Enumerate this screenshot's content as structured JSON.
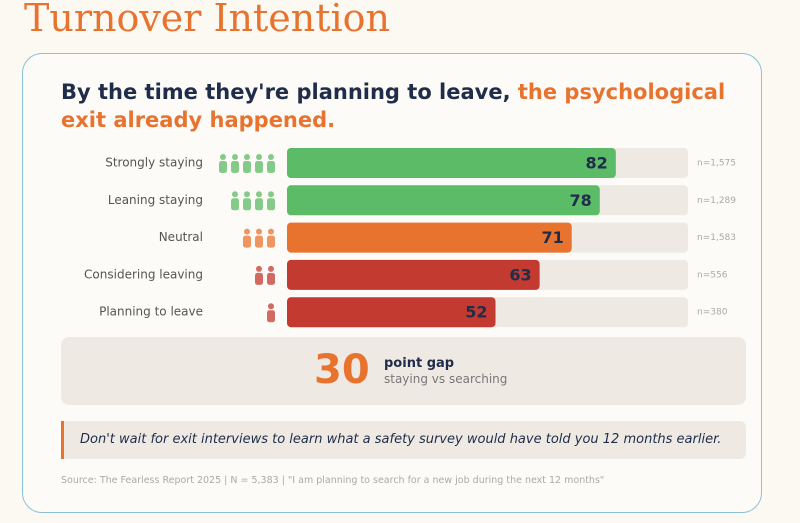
{
  "page_title": "Turnover Intention",
  "chart_data": {
    "type": "bar",
    "orientation": "horizontal",
    "title": "By the time they're planning to leave,",
    "title_highlight": "the psychological exit already happened.",
    "categories": [
      "Strongly staying",
      "Leaning staying",
      "Neutral",
      "Considering leaving",
      "Planning to leave"
    ],
    "values": [
      82,
      78,
      71,
      63,
      52
    ],
    "colors": [
      "#5bbb66",
      "#5bbb66",
      "#e8732f",
      "#c33a30",
      "#c33a30"
    ],
    "sample_sizes": [
      "n=1,575",
      "n=1,289",
      "n=1,583",
      "n=556",
      "n=380"
    ],
    "xlim": [
      0,
      100
    ]
  },
  "gap": {
    "value": "30",
    "label": "point gap",
    "sublabel": "staying vs searching"
  },
  "quote": "Don't wait for exit interviews to learn what a safety survey would have told you 12 months earlier.",
  "source": "Source: The Fearless Report 2025 | N = 5,383 | \"I am planning to search for a new job during the next 12 months\""
}
